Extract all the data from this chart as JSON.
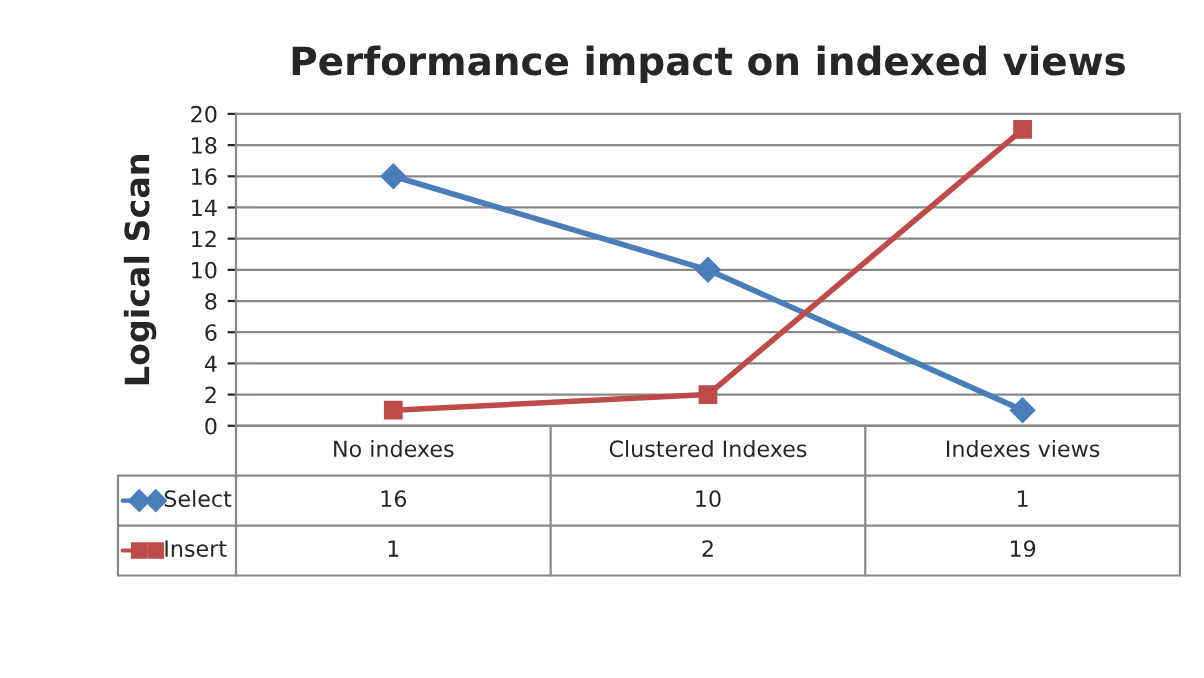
{
  "chart_data": {
    "type": "line",
    "title": "Performance impact on indexed views",
    "ylabel": "Logical Scan",
    "categories": [
      "No indexes",
      "Clustered Indexes",
      "Indexes views"
    ],
    "series": [
      {
        "name": "Select",
        "color": "#4a7ebb",
        "values": [
          16,
          10,
          1
        ],
        "marker": "diamond"
      },
      {
        "name": "Insert",
        "color": "#be4b48",
        "values": [
          1,
          2,
          19
        ],
        "marker": "square"
      }
    ],
    "ylim": [
      0,
      20
    ],
    "yticks": [
      0,
      2,
      4,
      6,
      8,
      10,
      12,
      14,
      16,
      18,
      20
    ],
    "grid": "y",
    "legend": "bottom",
    "data_labels": true,
    "line_style": "solid"
  }
}
